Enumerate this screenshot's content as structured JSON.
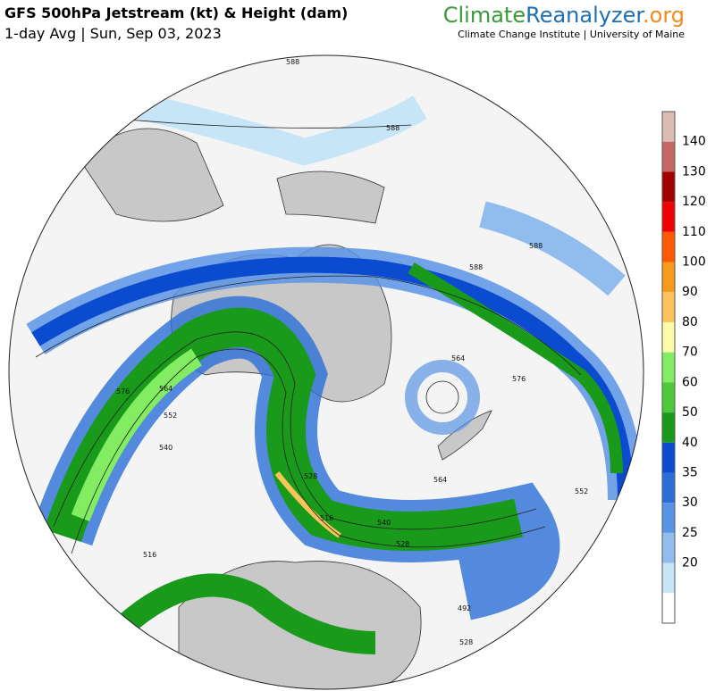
{
  "header": {
    "title": "GFS 500hPa Jetstream (kt) & Height (dam)",
    "subtitle": "1-day Avg | Sun, Sep 03, 2023"
  },
  "brand": {
    "parts": [
      {
        "text": "Climate",
        "color": "#3a9a3a"
      },
      {
        "text": "Reanalyzer",
        "color": "#1f6fb4"
      },
      {
        "text": ".org",
        "color": "#f08c1e"
      }
    ],
    "tagline": "Climate Change Institute | University of Maine"
  },
  "colorbar": {
    "labels": [
      "140",
      "130",
      "120",
      "110",
      "100",
      "90",
      "80",
      "70",
      "60",
      "50",
      "40",
      "35",
      "30",
      "25",
      "20"
    ],
    "colors": [
      "#dcbcb0",
      "#c86666",
      "#a40000",
      "#f00000",
      "#ff5a00",
      "#f89a1c",
      "#fbc45a",
      "#fefca8",
      "#82ed62",
      "#4ec93a",
      "#1a9a1a",
      "#0b4bd0",
      "#2a6fd8",
      "#5a94e6",
      "#90bdee",
      "#c6e6f8",
      "#ffffff"
    ]
  },
  "map": {
    "contour_labels": [
      "588",
      "588",
      "588",
      "588",
      "564",
      "576",
      "576",
      "564",
      "552",
      "540",
      "528",
      "516",
      "564",
      "552",
      "540",
      "528",
      "516",
      "492",
      "528"
    ]
  }
}
